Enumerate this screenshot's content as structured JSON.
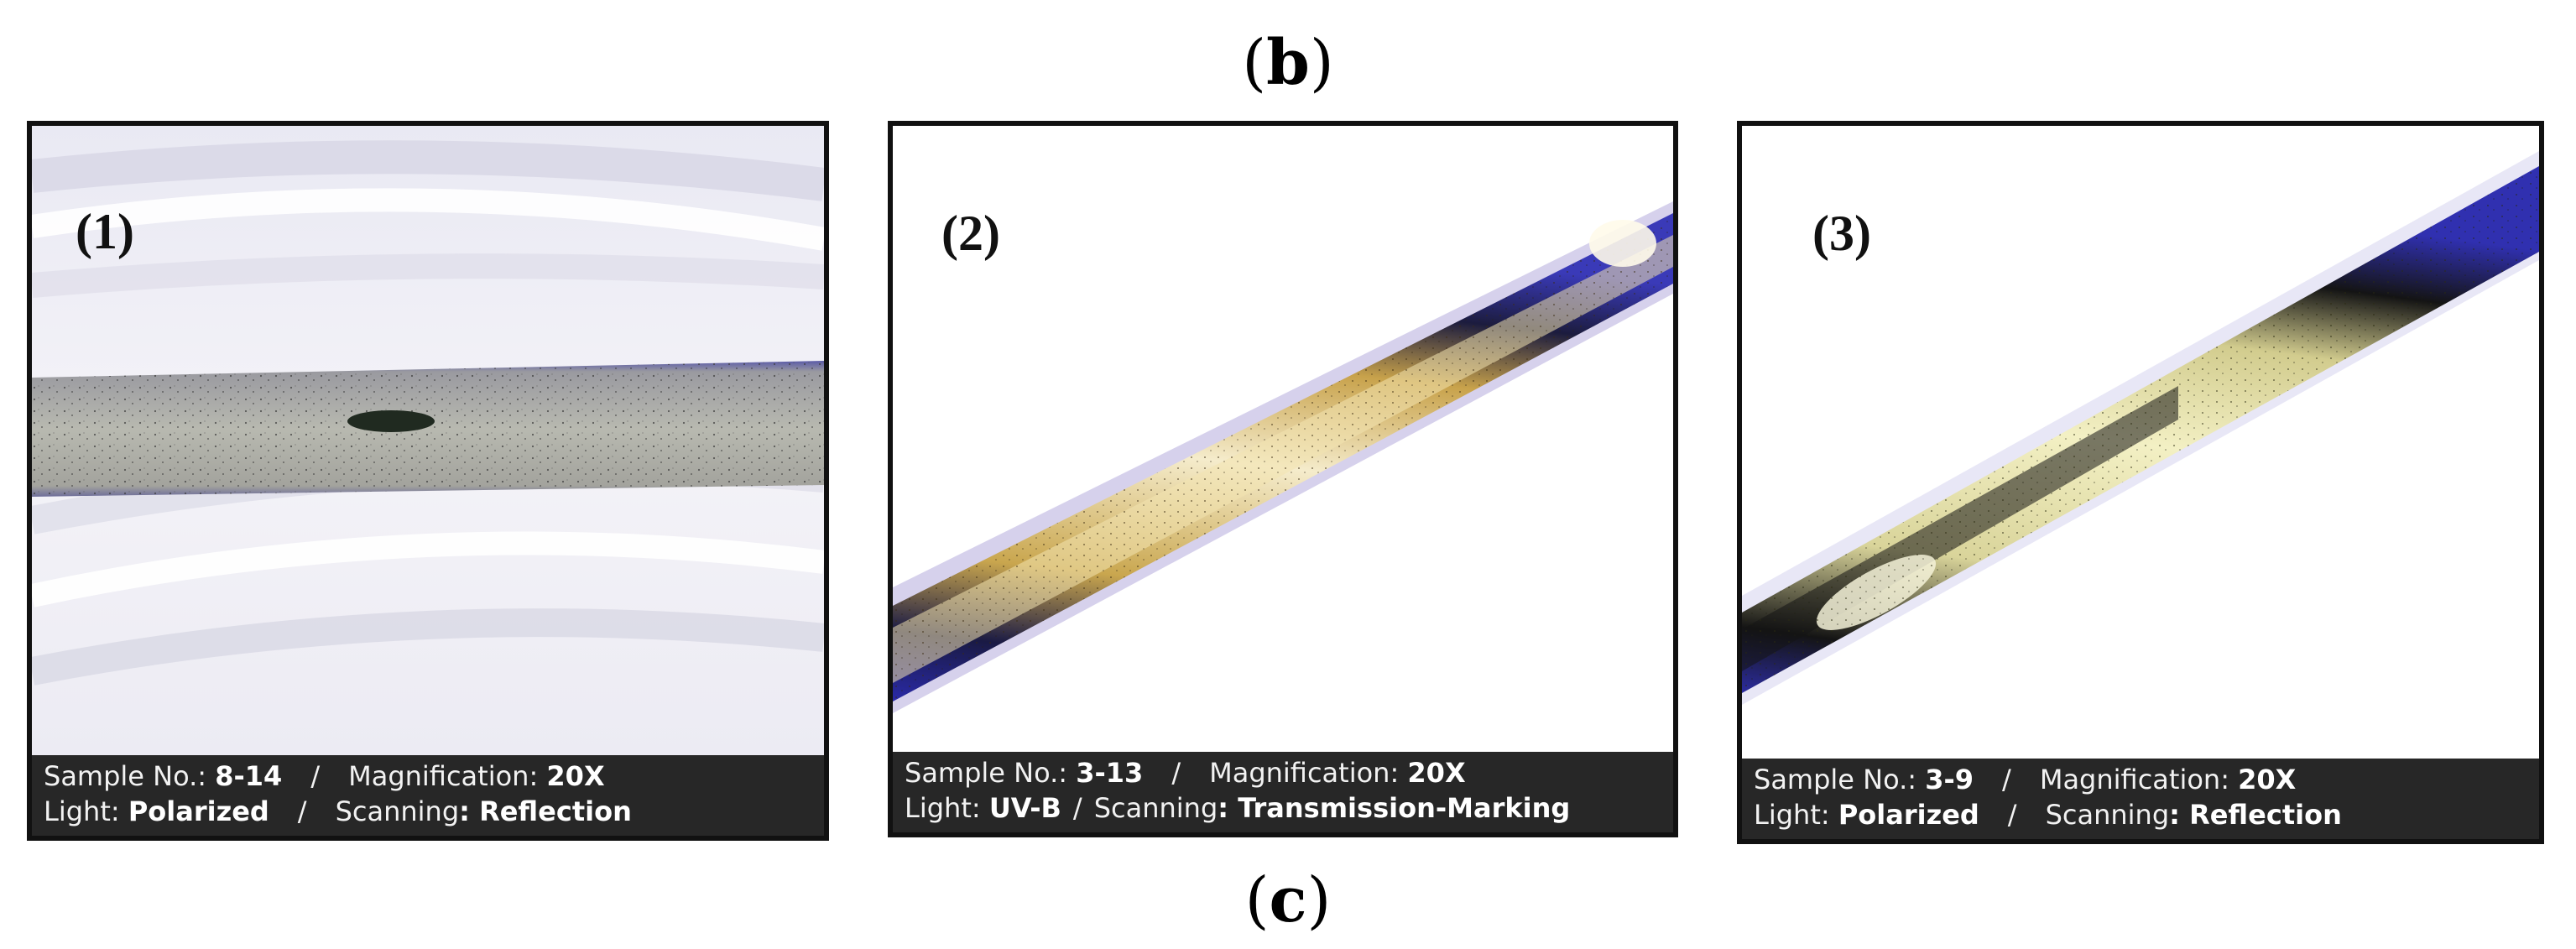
{
  "captions": {
    "top": "b",
    "bottom": "c"
  },
  "panels": [
    {
      "label": "(1)",
      "sample_label": "Sample No.:",
      "sample_value": "8-14",
      "magnification_label": "Magnification:",
      "magnification_value": "20X",
      "light_label": "Light:",
      "light_value": "Polarized",
      "scanning_label": "Scanning",
      "scanning_value": ": Reflection",
      "separator": "/"
    },
    {
      "label": "(2)",
      "sample_label": "Sample No.:",
      "sample_value": "3-13",
      "magnification_label": "Magnification:",
      "magnification_value": "20X",
      "light_label": "Light:",
      "light_value": "UV-B",
      "scanning_label": "Scanning",
      "scanning_value": ": Transmission-Marking",
      "separator": "/"
    },
    {
      "label": "(3)",
      "sample_label": "Sample No.:",
      "sample_value": "3-9",
      "magnification_label": "Magnification:",
      "magnification_value": "20X",
      "light_label": "Light:",
      "light_value": "Polarized",
      "scanning_label": "Scanning",
      "scanning_value": ": Reflection",
      "separator": "/"
    }
  ]
}
